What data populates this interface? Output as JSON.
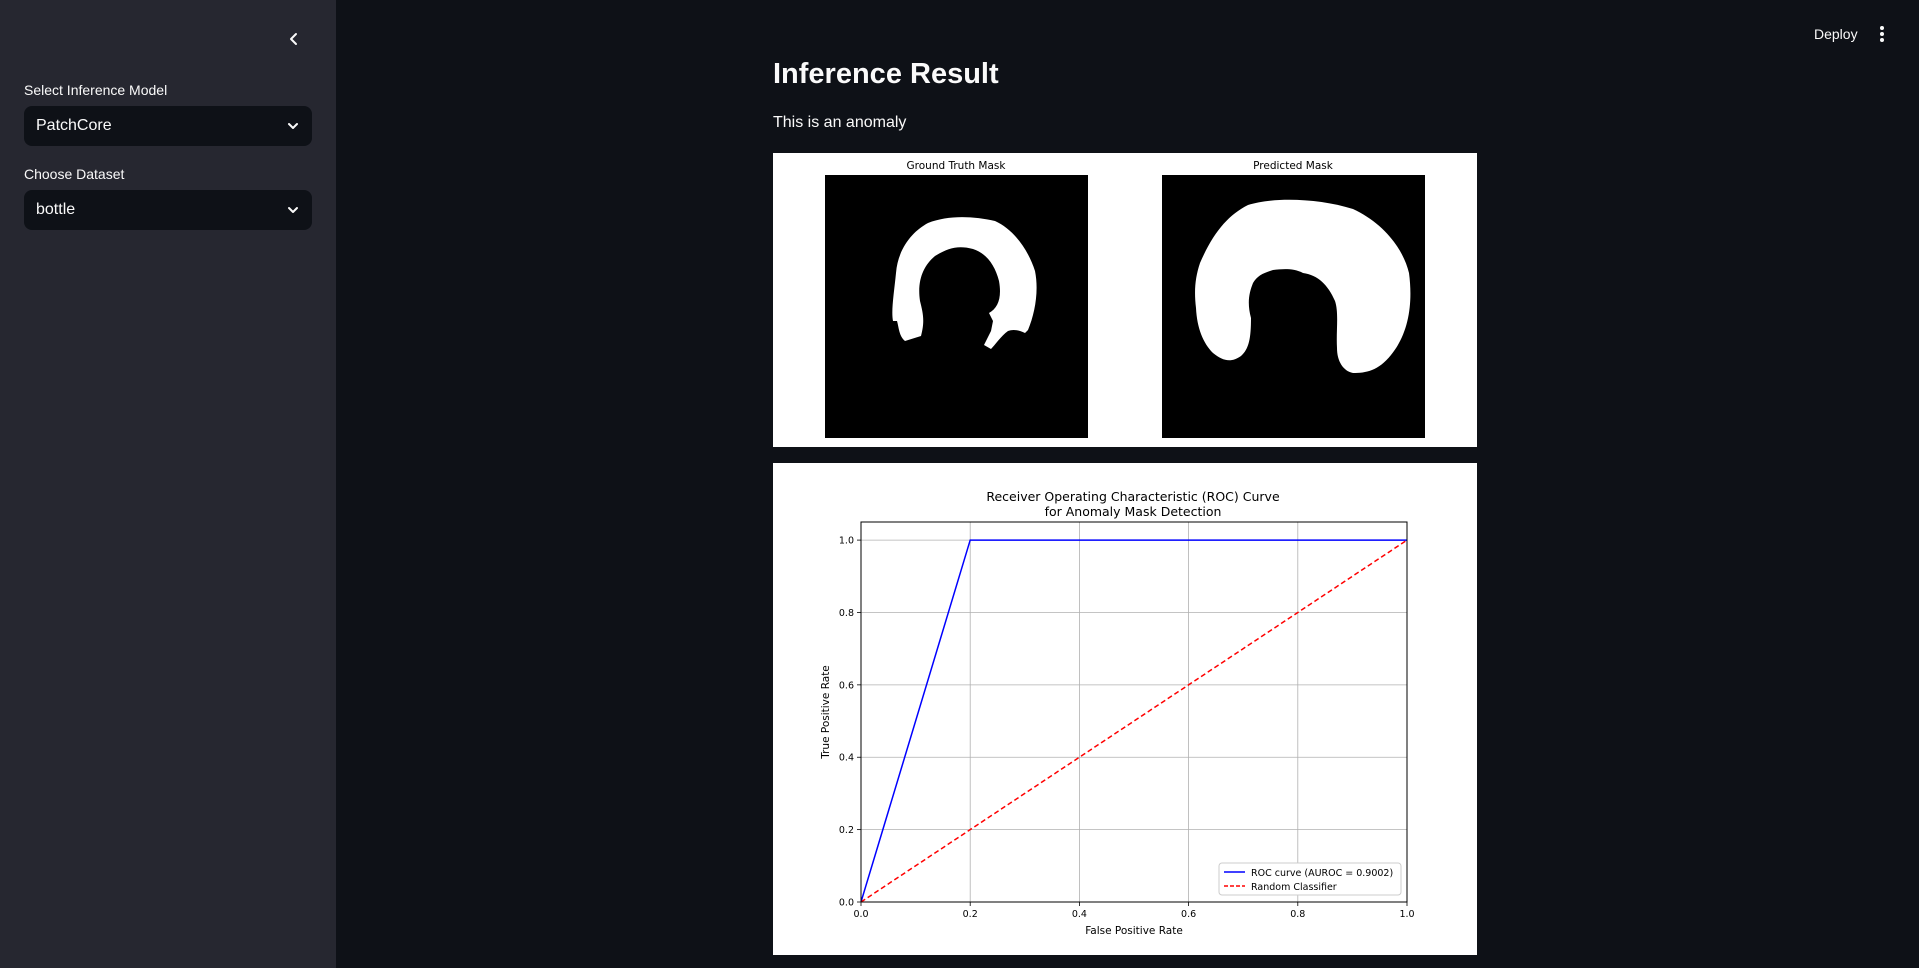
{
  "sidebar": {
    "model_label": "Select Inference Model",
    "model_value": "PatchCore",
    "dataset_label": "Choose Dataset",
    "dataset_value": "bottle"
  },
  "header": {
    "deploy_label": "Deploy"
  },
  "main": {
    "title": "Inference Result",
    "result_text": "This is an anomaly",
    "masks": {
      "ground_truth_title": "Ground Truth Mask",
      "predicted_title": "Predicted Mask"
    }
  },
  "colors": {
    "background": "#0e1117",
    "sidebar": "#262730",
    "roc": "#0000ff",
    "random": "#ff0000"
  },
  "chart_data": {
    "type": "line",
    "title_line1": "Receiver Operating Characteristic (ROC) Curve",
    "title_line2": "for Anomaly Mask Detection",
    "xlabel": "False Positive Rate",
    "ylabel": "True Positive Rate",
    "xlim": [
      0,
      1
    ],
    "ylim": [
      0,
      1.05
    ],
    "xticks": [
      0.0,
      0.2,
      0.4,
      0.6,
      0.8,
      1.0
    ],
    "yticks": [
      0.0,
      0.2,
      0.4,
      0.6,
      0.8,
      1.0
    ],
    "tick_labels": [
      "0.0",
      "0.2",
      "0.4",
      "0.6",
      "0.8",
      "1.0"
    ],
    "grid": true,
    "legend_position": "lower-right",
    "series": [
      {
        "name": "ROC curve (AUROC = 0.9002)",
        "color": "#0000ff",
        "style": "solid",
        "x": [
          0.0,
          0.2,
          1.0
        ],
        "y": [
          0.0,
          1.0,
          1.0
        ]
      },
      {
        "name": "Random Classifier",
        "color": "#ff0000",
        "style": "dashed",
        "x": [
          0.0,
          1.0
        ],
        "y": [
          0.0,
          1.0
        ]
      }
    ]
  }
}
